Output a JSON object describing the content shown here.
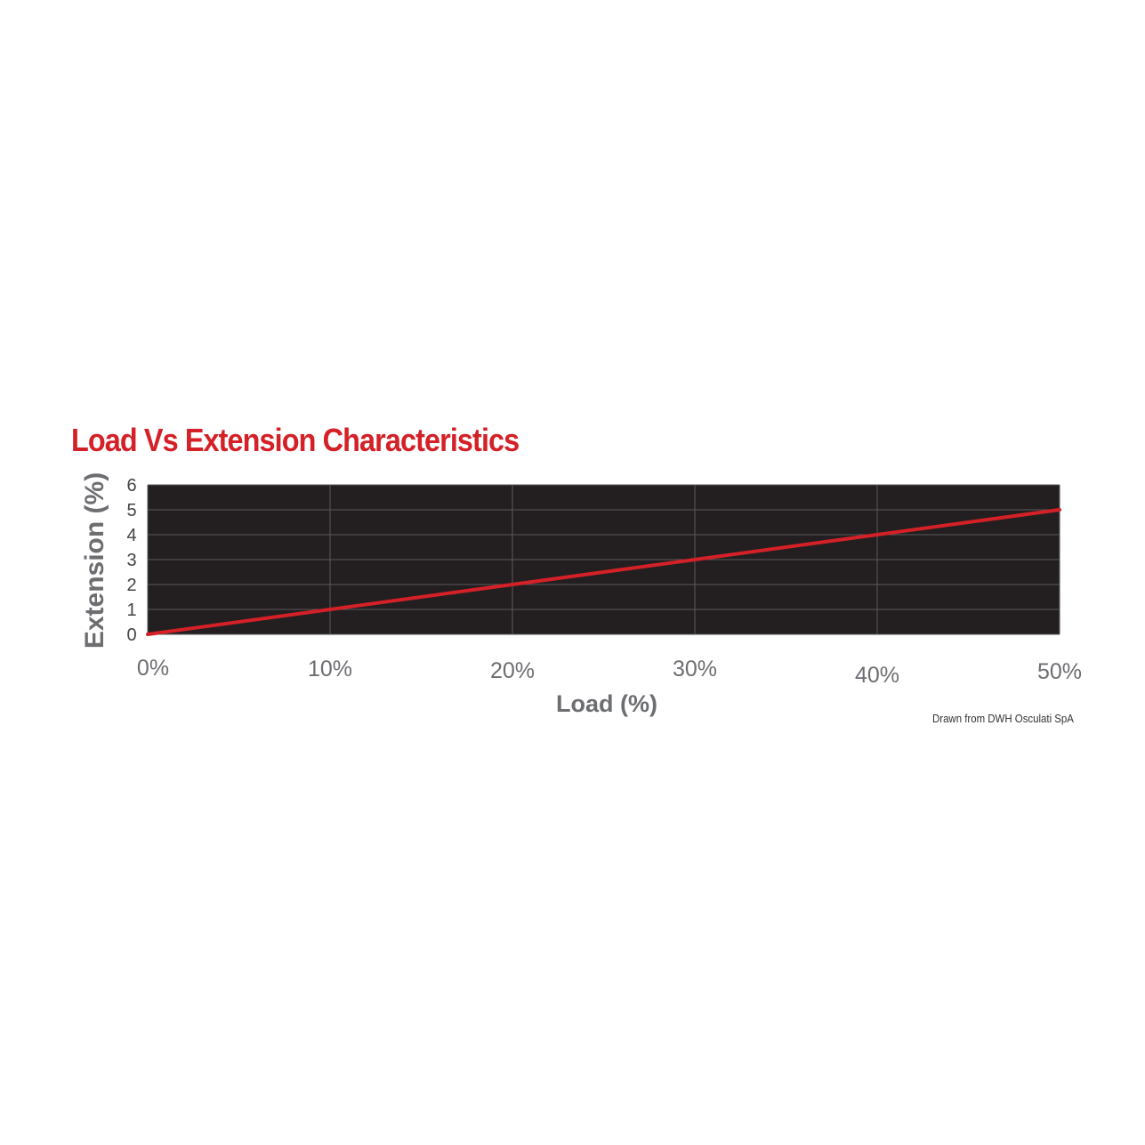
{
  "chart_data": {
    "type": "line",
    "title": "Load Vs Extension Characteristics",
    "xlabel": "Load (%)",
    "ylabel": "Extension (%)",
    "x_ticks": [
      "0%",
      "10%",
      "20%",
      "30%",
      "40%",
      "50%"
    ],
    "y_ticks": [
      "0",
      "1",
      "2",
      "3",
      "4",
      "5",
      "6"
    ],
    "xlim": [
      0,
      50
    ],
    "ylim": [
      0,
      6
    ],
    "grid": true,
    "series": [
      {
        "x": [
          0,
          10,
          20,
          30,
          40,
          50
        ],
        "y": [
          0,
          1,
          2,
          3,
          4,
          5
        ]
      }
    ],
    "colors": {
      "title": "#d42027",
      "line": "#d42027",
      "plot_background": "#231f20",
      "grid": "#5a5a5a",
      "axis_text": "#6d6e71"
    }
  },
  "credit": "Drawn from DWH Osculati SpA"
}
